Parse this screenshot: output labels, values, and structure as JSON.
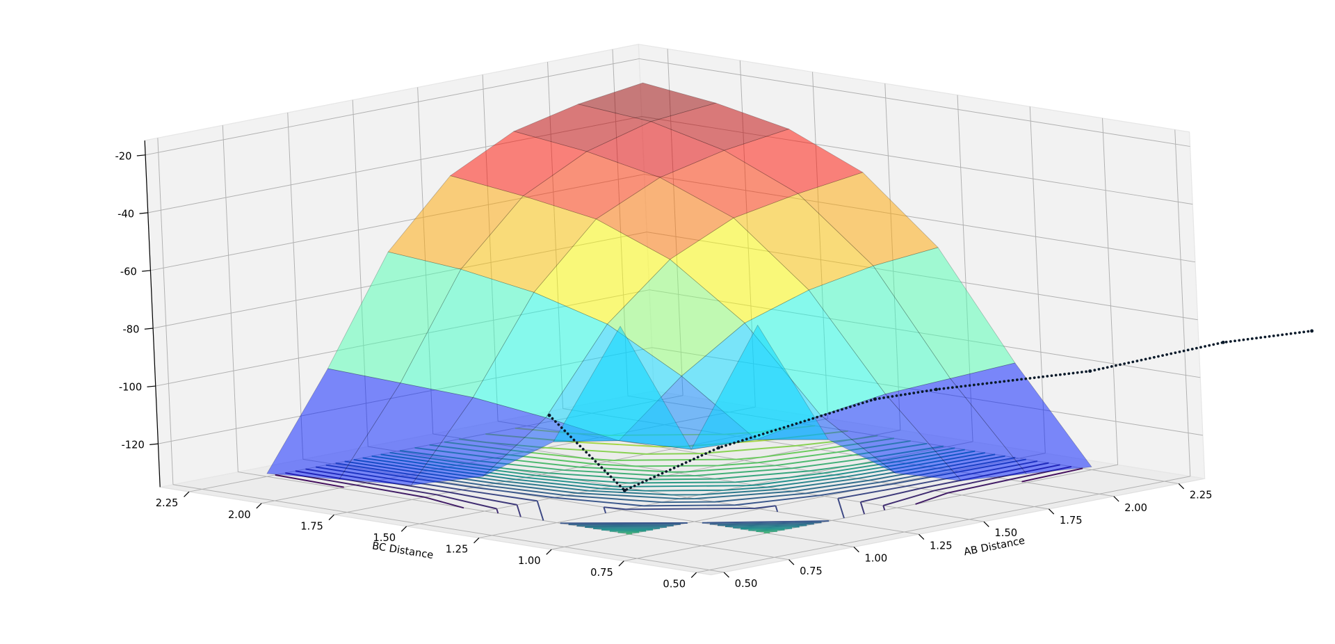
{
  "chart_data": {
    "type": "surface3d",
    "xlabel": "AB Distance",
    "ylabel": "BC Distance",
    "xlim": [
      0.45,
      2.35
    ],
    "ylim": [
      0.45,
      2.35
    ],
    "zlim": [
      -135,
      -15
    ],
    "xticks": [
      {
        "value": 0.5,
        "label": "0.50"
      },
      {
        "value": 0.75,
        "label": "0.75"
      },
      {
        "value": 1,
        "label": "1.00"
      },
      {
        "value": 1.25,
        "label": "1.25"
      },
      {
        "value": 1.5,
        "label": "1.50"
      },
      {
        "value": 1.75,
        "label": "1.75"
      },
      {
        "value": 2,
        "label": "2.00"
      },
      {
        "value": 2.25,
        "label": "2.25"
      }
    ],
    "yticks": [
      {
        "value": 0.5,
        "label": "0.50"
      },
      {
        "value": 0.75,
        "label": "0.75"
      },
      {
        "value": 1,
        "label": "1.00"
      },
      {
        "value": 1.25,
        "label": "1.25"
      },
      {
        "value": 1.5,
        "label": "1.50"
      },
      {
        "value": 1.75,
        "label": "1.75"
      },
      {
        "value": 2,
        "label": "2.00"
      },
      {
        "value": 2.25,
        "label": "2.25"
      }
    ],
    "zticks": [
      -120,
      -100,
      -80,
      -60,
      -40,
      -20
    ],
    "grid": true,
    "colormap": "jet",
    "surface_alpha": 0.5,
    "x": [
      0.5,
      0.75,
      1,
      1.25,
      1.5,
      1.75,
      2,
      2.25
    ],
    "y": [
      0.5,
      0.75,
      1,
      1.25,
      1.5,
      1.75,
      2,
      2.25
    ],
    "z": [
      [
        null,
        null,
        null,
        null,
        null,
        null,
        null,
        null
      ],
      [
        null,
        null,
        -63,
        -107,
        -123,
        -130,
        -132,
        -134
      ],
      [
        null,
        -63,
        -110,
        -111,
        -107,
        -104,
        -103,
        -102
      ],
      [
        null,
        -107,
        -111,
        -93,
        -79,
        -72,
        -68,
        -66
      ],
      [
        null,
        -123,
        -107,
        -79,
        -61,
        -51,
        -47,
        -44
      ],
      [
        null,
        -130,
        -104,
        -72,
        -51,
        -41,
        -36,
        -33
      ],
      [
        null,
        -132,
        -103,
        -68,
        -47,
        -36,
        -30,
        -28
      ],
      [
        null,
        -134,
        -102,
        -66,
        -44,
        -33,
        -28,
        -25
      ]
    ],
    "contour_levels": [
      -130,
      -125,
      -120,
      -115,
      -110,
      -105,
      -100,
      -95,
      -90,
      -85,
      -80,
      -75,
      -70,
      -65,
      -60,
      -55,
      -50,
      -45,
      -40,
      -35,
      -30
    ],
    "contour_colormap": "viridis",
    "trajectory": {
      "color": "#0a1a2a",
      "ab": [
        0.75,
        0.75,
        0.94,
        1.49,
        1.67,
        2.26,
        2.74,
        3.08
      ],
      "bc": [
        1.26,
        1.01,
        0.85,
        0.8,
        0.75,
        0.75,
        0.72,
        0.72
      ],
      "z": [
        -98,
        -120,
        -106,
        -98,
        -97,
        -101,
        -99,
        -101
      ]
    }
  }
}
